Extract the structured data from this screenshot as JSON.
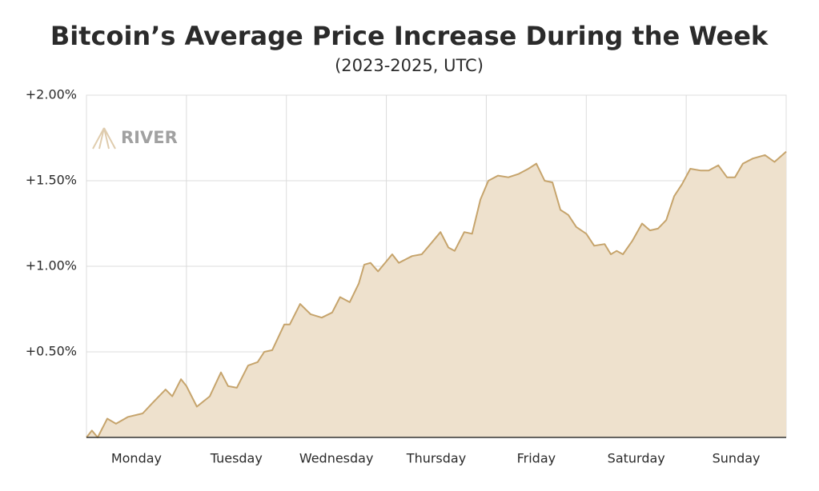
{
  "chart_data": {
    "type": "area",
    "title": "Bitcoin’s Average Price Increase During the Week",
    "subtitle": "(2023-2025, UTC)",
    "watermark": "RIVER",
    "x": [
      0,
      1.3,
      2.7,
      5,
      7.1,
      10,
      13.5,
      15.8,
      19,
      20.6,
      22.7,
      24,
      26.5,
      29.6,
      32.3,
      34,
      36.1,
      38.8,
      41.1,
      42.7,
      44.6,
      47.5,
      48.8,
      51.3,
      53.8,
      56.5,
      59,
      60.9,
      63.2,
      65.4,
      66.7,
      68.2,
      70,
      73.4,
      75,
      78.2,
      80.5,
      82.6,
      85,
      86.9,
      88.4,
      90.7,
      92.6,
      94.6,
      96.5,
      98.8,
      101.3,
      103.8,
      106.1,
      108,
      110,
      111.9,
      113.8,
      115.7,
      117.6,
      120,
      121.9,
      124.4,
      125.9,
      127.3,
      128.8,
      131.1,
      133.4,
      135.3,
      137.2,
      139.2,
      141.1,
      143,
      145,
      147.4,
      149.4,
      151.7,
      153.8,
      155.7,
      157.6,
      160,
      162.9,
      165.2,
      168
    ],
    "series": [
      {
        "color": "#c6a46c",
        "fill": "#eee1cd",
        "values": [
          0,
          0.04,
          0,
          0.11,
          0.08,
          0.12,
          0.14,
          0.2,
          0.28,
          0.24,
          0.34,
          0.3,
          0.18,
          0.24,
          0.38,
          0.3,
          0.29,
          0.42,
          0.44,
          0.5,
          0.51,
          0.66,
          0.66,
          0.78,
          0.72,
          0.7,
          0.73,
          0.82,
          0.79,
          0.9,
          1.01,
          1.02,
          0.97,
          1.07,
          1.02,
          1.06,
          1.07,
          1.13,
          1.2,
          1.11,
          1.09,
          1.2,
          1.19,
          1.39,
          1.5,
          1.53,
          1.52,
          1.54,
          1.57,
          1.6,
          1.5,
          1.49,
          1.33,
          1.3,
          1.23,
          1.19,
          1.12,
          1.13,
          1.07,
          1.09,
          1.07,
          1.15,
          1.25,
          1.21,
          1.22,
          1.27,
          1.41,
          1.48,
          1.57,
          1.56,
          1.56,
          1.59,
          1.52,
          1.52,
          1.6,
          1.63,
          1.65,
          1.61,
          1.67
        ]
      }
    ],
    "xlim": [
      0,
      168
    ],
    "xticks": [
      {
        "value": 12,
        "label": "Monday"
      },
      {
        "value": 36,
        "label": "Tuesday"
      },
      {
        "value": 60,
        "label": "Wednesday"
      },
      {
        "value": 84,
        "label": "Thursday"
      },
      {
        "value": 108,
        "label": "Friday"
      },
      {
        "value": 132,
        "label": "Saturday"
      },
      {
        "value": 156,
        "label": "Sunday"
      }
    ],
    "ylim": [
      0,
      2
    ],
    "yticks": [
      {
        "value": 0.5,
        "label": "+0.50%"
      },
      {
        "value": 1,
        "label": "+1.00%"
      },
      {
        "value": 1.5,
        "label": "+1.50%"
      },
      {
        "value": 2,
        "label": "+2.00%"
      }
    ],
    "grid": true
  }
}
